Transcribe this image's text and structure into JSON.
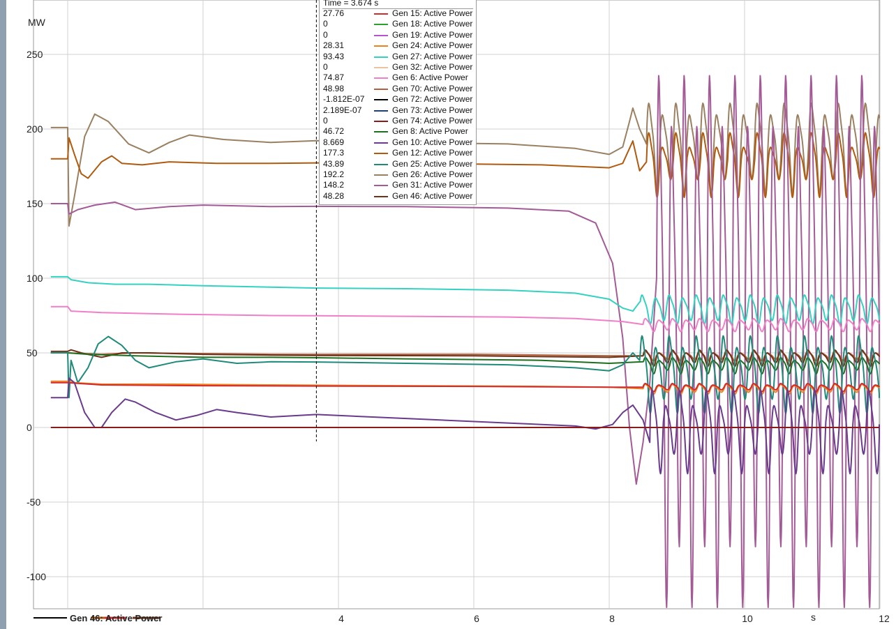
{
  "colors": {
    "background": "#ffffff",
    "grid": "#d0d0d0",
    "cursor": "#000000",
    "left_strip": "#8fa0b0"
  },
  "tooltip": {
    "title": "Time = 3.674 s",
    "rows": [
      {
        "value": "27.76",
        "name": "Gen 15: Active Power",
        "color": "#d22b2b"
      },
      {
        "value": "0",
        "name": "Gen 18: Active Power",
        "color": "#2ca02c"
      },
      {
        "value": "0",
        "name": "Gen 19: Active Power",
        "color": "#b455d0"
      },
      {
        "value": "28.31",
        "name": "Gen 24: Active Power",
        "color": "#f07f1e"
      },
      {
        "value": "93.43",
        "name": "Gen 27: Active Power",
        "color": "#33d2c0"
      },
      {
        "value": "0",
        "name": "Gen 32: Active Power",
        "color": "#e8c4a0"
      },
      {
        "value": "74.87",
        "name": "Gen 6: Active Power",
        "color": "#f07fc8"
      },
      {
        "value": "48.98",
        "name": "Gen 70: Active Power",
        "color": "#b0603c"
      },
      {
        "value": "-1.812E-07",
        "name": "Gen 72: Active Power",
        "color": "#000000"
      },
      {
        "value": "2.189E-07",
        "name": "Gen 73: Active Power",
        "color": "#1f3f6e"
      },
      {
        "value": "0",
        "name": "Gen 74: Active Power",
        "color": "#8b1a1a"
      },
      {
        "value": "46.72",
        "name": "Gen 8: Active Power",
        "color": "#1f6e1f"
      },
      {
        "value": "8.669",
        "name": "Gen 10: Active Power",
        "color": "#6a3a8c"
      },
      {
        "value": "177.3",
        "name": "Gen 12: Active Power",
        "color": "#b05a0e"
      },
      {
        "value": "43.89",
        "name": "Gen 25: Active Power",
        "color": "#1f8a7a"
      },
      {
        "value": "192.2",
        "name": "Gen 26: Active Power",
        "color": "#9a8060"
      },
      {
        "value": "148.2",
        "name": "Gen 31: Active Power",
        "color": "#a45a96"
      },
      {
        "value": "48.28",
        "name": "Gen 46: Active Power",
        "color": "#6e3216"
      }
    ]
  },
  "legend_overlap_text": "Gen 46: Active Power",
  "chart_data": {
    "type": "line",
    "title": "",
    "xlabel": "s",
    "ylabel": "MW",
    "xlim": [
      -0.25,
      12
    ],
    "ylim": [
      -125,
      275
    ],
    "x_ticks": [
      4,
      6,
      8,
      10,
      12
    ],
    "x_tick_labels": [
      "4",
      "6",
      "8",
      "10",
      "12"
    ],
    "y_ticks": [
      -100,
      -50,
      0,
      50,
      100,
      150,
      200,
      250
    ],
    "y_tick_labels": [
      "-100",
      "-50",
      "0",
      "50",
      "100",
      "150",
      "200",
      "250"
    ],
    "grid": true,
    "cursor_time": 3.674,
    "series": [
      {
        "name": "Gen 26: Active Power",
        "color": "#9a8060",
        "stroke": 2,
        "points": [
          [
            -0.25,
            201
          ],
          [
            0,
            201
          ],
          [
            0.02,
            135
          ],
          [
            0.1,
            155
          ],
          [
            0.25,
            195
          ],
          [
            0.4,
            210
          ],
          [
            0.6,
            205
          ],
          [
            0.9,
            190
          ],
          [
            1.2,
            184
          ],
          [
            1.5,
            191
          ],
          [
            1.8,
            196
          ],
          [
            2.3,
            193
          ],
          [
            3,
            191
          ],
          [
            3.674,
            192.2
          ],
          [
            5,
            191
          ],
          [
            6.5,
            190
          ],
          [
            7.5,
            187
          ],
          [
            8,
            183
          ],
          [
            8.2,
            188
          ],
          [
            8.3,
            205
          ],
          [
            8.35,
            214
          ],
          [
            8.45,
            200
          ],
          [
            8.55,
            190
          ]
        ],
        "osc": {
          "start": 8.55,
          "period": 0.2,
          "center": 190,
          "amp": [
            20,
            28
          ],
          "duration": 3.45
        }
      },
      {
        "name": "Gen 12: Active Power",
        "color": "#b05a0e",
        "stroke": 2,
        "points": [
          [
            -0.25,
            180
          ],
          [
            0,
            180
          ],
          [
            0.02,
            194
          ],
          [
            0.1,
            183
          ],
          [
            0.2,
            170
          ],
          [
            0.3,
            167
          ],
          [
            0.5,
            178
          ],
          [
            0.65,
            182
          ],
          [
            0.8,
            177
          ],
          [
            1.1,
            176
          ],
          [
            1.5,
            178
          ],
          [
            2.2,
            177
          ],
          [
            3,
            177
          ],
          [
            3.674,
            177.3
          ],
          [
            5,
            177
          ],
          [
            7,
            176
          ],
          [
            8,
            174
          ],
          [
            8.2,
            177
          ],
          [
            8.35,
            192
          ],
          [
            8.45,
            172
          ],
          [
            8.55,
            178
          ]
        ],
        "osc": {
          "start": 8.55,
          "period": 0.2,
          "center": 178,
          "amp": [
            10,
            20
          ],
          "duration": 3.45
        }
      },
      {
        "name": "Gen 31: Active Power",
        "color": "#a45a96",
        "stroke": 2,
        "points": [
          [
            -0.25,
            150
          ],
          [
            0,
            150
          ],
          [
            0.02,
            143
          ],
          [
            0.15,
            146
          ],
          [
            0.4,
            149
          ],
          [
            0.7,
            151
          ],
          [
            1,
            146
          ],
          [
            1.5,
            148
          ],
          [
            2,
            149
          ],
          [
            3,
            148
          ],
          [
            3.674,
            148.2
          ],
          [
            5,
            148
          ],
          [
            6.5,
            147
          ],
          [
            7.4,
            145
          ],
          [
            7.8,
            137
          ],
          [
            8.05,
            110
          ],
          [
            8.2,
            60
          ],
          [
            8.3,
            0
          ],
          [
            8.4,
            -38
          ],
          [
            8.5,
            -10
          ],
          [
            8.6,
            30
          ],
          [
            8.7,
            100
          ]
        ],
        "osc": {
          "start": 8.7,
          "period": 0.1875,
          "center": 75,
          "amp": [
            130,
            165
          ],
          "duration": 3.3
        }
      },
      {
        "name": "Gen 27: Active Power",
        "color": "#33d2c0",
        "stroke": 2,
        "points": [
          [
            -0.25,
            101
          ],
          [
            0,
            101
          ],
          [
            0.05,
            99
          ],
          [
            0.3,
            97
          ],
          [
            0.7,
            96
          ],
          [
            1.2,
            96
          ],
          [
            2,
            95
          ],
          [
            3,
            94
          ],
          [
            3.674,
            93.43
          ],
          [
            5,
            93
          ],
          [
            6.5,
            92
          ],
          [
            7.5,
            90
          ],
          [
            8,
            86
          ],
          [
            8.2,
            80
          ],
          [
            8.35,
            78
          ],
          [
            8.45,
            84
          ]
        ],
        "osc": {
          "start": 8.45,
          "period": 0.2,
          "center": 80,
          "amp": [
            7,
            9
          ],
          "duration": 3.55
        }
      },
      {
        "name": "Gen 6: Active Power",
        "color": "#f07fc8",
        "stroke": 2,
        "points": [
          [
            -0.25,
            81
          ],
          [
            0,
            81
          ],
          [
            0.05,
            78
          ],
          [
            0.5,
            77
          ],
          [
            1.5,
            76
          ],
          [
            3,
            75
          ],
          [
            3.674,
            74.87
          ],
          [
            5,
            74.5
          ],
          [
            6.5,
            74
          ],
          [
            7.5,
            73
          ],
          [
            8.2,
            71
          ],
          [
            8.5,
            69
          ]
        ],
        "osc": {
          "start": 8.5,
          "period": 0.2,
          "center": 69,
          "amp": [
            3,
            4
          ],
          "duration": 3.5
        }
      },
      {
        "name": "Gen 70: Active Power",
        "color": "#b0603c",
        "stroke": 2,
        "points": [
          [
            -0.25,
            50
          ],
          [
            0,
            50
          ],
          [
            0.5,
            49
          ],
          [
            1,
            50
          ],
          [
            2,
            49.5
          ],
          [
            3,
            49
          ],
          [
            3.674,
            48.98
          ],
          [
            6,
            49
          ],
          [
            8,
            48
          ],
          [
            8.5,
            48
          ]
        ],
        "osc": {
          "start": 8.5,
          "period": 0.2,
          "center": 48,
          "amp": [
            2,
            3
          ],
          "duration": 3.5
        }
      },
      {
        "name": "Gen 46: Active Power",
        "color": "#6e3216",
        "stroke": 2,
        "points": [
          [
            -0.25,
            51
          ],
          [
            0,
            51
          ],
          [
            0.05,
            52
          ],
          [
            0.2,
            50
          ],
          [
            0.5,
            47
          ],
          [
            0.8,
            50
          ],
          [
            1.2,
            50
          ],
          [
            2,
            49
          ],
          [
            3,
            48.5
          ],
          [
            3.674,
            48.28
          ],
          [
            6,
            48
          ],
          [
            8,
            47
          ],
          [
            8.5,
            48
          ]
        ],
        "osc": {
          "start": 8.5,
          "period": 0.2,
          "center": 47,
          "amp": [
            3,
            5
          ],
          "duration": 3.5
        }
      },
      {
        "name": "Gen 8: Active Power",
        "color": "#1f6e1f",
        "stroke": 2,
        "points": [
          [
            -0.25,
            50
          ],
          [
            0,
            50
          ],
          [
            0.3,
            49
          ],
          [
            1,
            48
          ],
          [
            2,
            47
          ],
          [
            3,
            47
          ],
          [
            3.674,
            46.72
          ],
          [
            5,
            46
          ],
          [
            7,
            45
          ],
          [
            8,
            43
          ],
          [
            8.5,
            44
          ]
        ],
        "osc": {
          "start": 8.5,
          "period": 0.2,
          "center": 42,
          "amp": [
            3,
            5
          ],
          "duration": 3.5
        }
      },
      {
        "name": "Gen 25: Active Power",
        "color": "#1f8a7a",
        "stroke": 2,
        "points": [
          [
            -0.25,
            50
          ],
          [
            0,
            50
          ],
          [
            0.02,
            20
          ],
          [
            0.05,
            45
          ],
          [
            0.15,
            30
          ],
          [
            0.3,
            40
          ],
          [
            0.45,
            56
          ],
          [
            0.6,
            61
          ],
          [
            0.8,
            55
          ],
          [
            1,
            45
          ],
          [
            1.2,
            40
          ],
          [
            1.6,
            44
          ],
          [
            2,
            46
          ],
          [
            2.5,
            43
          ],
          [
            3,
            44
          ],
          [
            3.674,
            43.89
          ],
          [
            5,
            43
          ],
          [
            6.5,
            42
          ],
          [
            7.5,
            40
          ],
          [
            8,
            38
          ],
          [
            8.2,
            42
          ],
          [
            8.35,
            50
          ],
          [
            8.45,
            45
          ]
        ],
        "osc": {
          "start": 8.45,
          "period": 0.2,
          "center": 38,
          "amp": [
            16,
            24
          ],
          "duration": 3.55
        }
      },
      {
        "name": "Gen 24: Active Power",
        "color": "#f07f1e",
        "stroke": 2,
        "points": [
          [
            -0.25,
            31
          ],
          [
            0,
            31
          ],
          [
            0.1,
            30
          ],
          [
            0.5,
            29
          ],
          [
            1.5,
            29
          ],
          [
            3,
            28.5
          ],
          [
            3.674,
            28.31
          ],
          [
            5,
            28
          ],
          [
            7,
            27.5
          ],
          [
            8,
            27
          ],
          [
            8.5,
            26
          ]
        ],
        "osc": {
          "start": 8.5,
          "period": 0.2,
          "center": 26,
          "amp": [
            2,
            3
          ],
          "duration": 3.5
        }
      },
      {
        "name": "Gen 15: Active Power",
        "color": "#d22b2b",
        "stroke": 2,
        "points": [
          [
            -0.25,
            30
          ],
          [
            0,
            30
          ],
          [
            0.5,
            28.5
          ],
          [
            2,
            28
          ],
          [
            3.674,
            27.76
          ],
          [
            6,
            27.5
          ],
          [
            8,
            27
          ],
          [
            8.5,
            27
          ]
        ],
        "osc": {
          "start": 8.5,
          "period": 0.2,
          "center": 27,
          "amp": [
            1.5,
            2.5
          ],
          "duration": 3.5
        }
      },
      {
        "name": "Gen 10: Active Power",
        "color": "#6a3a8c",
        "stroke": 2,
        "points": [
          [
            -0.25,
            20
          ],
          [
            0,
            20
          ],
          [
            0.02,
            33
          ],
          [
            0.1,
            30
          ],
          [
            0.25,
            10
          ],
          [
            0.4,
            0
          ],
          [
            0.5,
            0
          ],
          [
            0.65,
            10
          ],
          [
            0.85,
            19
          ],
          [
            1,
            17
          ],
          [
            1.3,
            10
          ],
          [
            1.6,
            5
          ],
          [
            1.9,
            8
          ],
          [
            2.2,
            12
          ],
          [
            2.5,
            10
          ],
          [
            3,
            7
          ],
          [
            3.674,
            8.669
          ],
          [
            4.5,
            7
          ],
          [
            5.5,
            5
          ],
          [
            6.5,
            3
          ],
          [
            7.5,
            1
          ],
          [
            7.8,
            -1
          ],
          [
            8.05,
            2
          ],
          [
            8.2,
            10
          ],
          [
            8.35,
            15
          ],
          [
            8.5,
            5
          ],
          [
            8.6,
            -10
          ]
        ],
        "osc": {
          "start": 8.6,
          "period": 0.2,
          "center": 0,
          "amp": [
            15,
            26
          ],
          "duration": 3.4
        }
      },
      {
        "name": "Gen 74: Active Power",
        "color": "#8b1a1a",
        "stroke": 2,
        "points": [
          [
            -0.25,
            0
          ],
          [
            12,
            0
          ]
        ]
      }
    ]
  }
}
